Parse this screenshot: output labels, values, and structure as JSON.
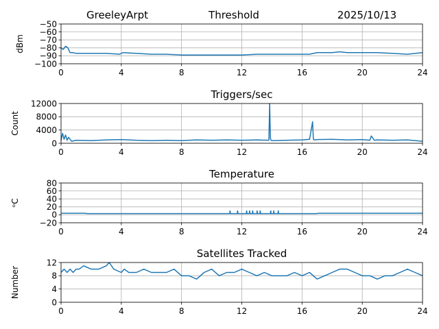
{
  "header": {
    "station": "GreeleyArpt",
    "plot_name": "Threshold",
    "date": "2025/10/13"
  },
  "colors": {
    "line": "#1f77b4",
    "grid": "#b0b0b0",
    "axis": "#000000"
  },
  "chart_data": [
    {
      "type": "line",
      "title": "",
      "ylabel": "dBm",
      "xlim": [
        0,
        24
      ],
      "ylim": [
        -100,
        -50
      ],
      "xticks": [
        0,
        4,
        8,
        12,
        16,
        20,
        24
      ],
      "yticks": [
        -100,
        -90,
        -80,
        -70,
        -60,
        -50
      ],
      "grid": true,
      "series": [
        {
          "x": [
            0,
            0.15,
            0.3,
            0.45,
            0.6,
            0.8,
            1.0,
            1.5,
            2.0,
            3.0,
            3.9,
            4.1,
            5.0,
            6.0,
            7.0,
            8.0,
            9.0,
            10.0,
            11.0,
            12.0,
            13.0,
            14.0,
            15.0,
            16.0,
            16.5,
            17.0,
            18.0,
            18.5,
            19.0,
            20.0,
            21.0,
            22.0,
            23.0,
            24.0
          ],
          "y": [
            -80,
            -82,
            -78,
            -80,
            -86,
            -86,
            -87,
            -87,
            -87,
            -87,
            -88,
            -86,
            -87,
            -88,
            -88,
            -89,
            -89,
            -89,
            -89,
            -89,
            -88,
            -88,
            -88,
            -88,
            -88,
            -86,
            -86,
            -85,
            -86,
            -86,
            -86,
            -87,
            -88,
            -86
          ]
        }
      ]
    },
    {
      "type": "line",
      "title": "Triggers/sec",
      "ylabel": "Count",
      "xlim": [
        0,
        24
      ],
      "ylim": [
        0,
        12000
      ],
      "xticks": [
        0,
        4,
        8,
        12,
        16,
        20,
        24
      ],
      "yticks": [
        0,
        4000,
        8000,
        12000
      ],
      "grid": true,
      "series": [
        {
          "x": [
            0,
            0.1,
            0.2,
            0.3,
            0.4,
            0.5,
            0.7,
            1.0,
            2.0,
            3.0,
            4.0,
            5.0,
            6.0,
            7.0,
            8.0,
            9.0,
            10.0,
            11.0,
            12.0,
            13.0,
            13.8,
            13.85,
            13.9,
            13.95,
            14.0,
            15.0,
            16.0,
            16.5,
            16.7,
            16.75,
            16.8,
            17.0,
            18.0,
            19.0,
            20.0,
            20.5,
            20.6,
            20.8,
            21.0,
            22.0,
            23.0,
            24.0
          ],
          "y": [
            800,
            3000,
            1200,
            2500,
            900,
            1800,
            600,
            900,
            800,
            1000,
            1100,
            900,
            800,
            900,
            800,
            1000,
            900,
            1000,
            900,
            1000,
            900,
            12000,
            1500,
            900,
            800,
            900,
            1000,
            1200,
            6500,
            1300,
            1000,
            1100,
            1200,
            1000,
            1100,
            900,
            2200,
            900,
            1000,
            900,
            1000,
            600
          ]
        }
      ]
    },
    {
      "type": "line",
      "title": "Temperature",
      "ylabel": "ᵒC",
      "xlim": [
        0,
        24
      ],
      "ylim": [
        -20,
        80
      ],
      "xticks": [
        0,
        4,
        8,
        12,
        16,
        20,
        24
      ],
      "yticks": [
        -20,
        0,
        20,
        40,
        60,
        80
      ],
      "grid": true,
      "series": [
        {
          "x": [
            0,
            1.6,
            1.7,
            11.2,
            11.22,
            11.25,
            11.7,
            11.72,
            11.75,
            12.3,
            12.32,
            12.35,
            12.5,
            12.52,
            12.55,
            12.7,
            12.72,
            12.75,
            13.0,
            13.02,
            13.05,
            13.2,
            13.22,
            13.25,
            13.9,
            13.92,
            13.95,
            14.1,
            14.12,
            14.15,
            14.4,
            14.42,
            14.45,
            17.0,
            17.1,
            24.0
          ],
          "y": [
            4,
            4,
            3,
            3,
            10,
            3,
            3,
            10,
            3,
            3,
            10,
            3,
            3,
            10,
            3,
            3,
            10,
            3,
            3,
            10,
            3,
            3,
            10,
            3,
            3,
            10,
            3,
            3,
            10,
            3,
            3,
            10,
            3,
            3,
            4,
            4
          ]
        }
      ]
    },
    {
      "type": "line",
      "title": "Satellites Tracked",
      "ylabel": "Number",
      "xlim": [
        0,
        24
      ],
      "ylim": [
        0,
        12
      ],
      "xticks": [
        0,
        4,
        8,
        12,
        16,
        20,
        24
      ],
      "yticks": [
        0,
        4,
        8,
        12
      ],
      "grid": true,
      "series": [
        {
          "x": [
            0,
            0.2,
            0.4,
            0.6,
            0.8,
            1.0,
            1.2,
            1.5,
            2.0,
            2.5,
            3.0,
            3.2,
            3.5,
            4.0,
            4.2,
            4.5,
            5.0,
            5.5,
            6.0,
            6.5,
            7.0,
            7.5,
            8.0,
            8.5,
            9.0,
            9.5,
            10.0,
            10.5,
            11.0,
            11.5,
            12.0,
            12.5,
            13.0,
            13.5,
            14.0,
            14.5,
            15.0,
            15.5,
            16.0,
            16.5,
            17.0,
            17.5,
            18.0,
            18.5,
            19.0,
            19.5,
            20.0,
            20.5,
            21.0,
            21.5,
            22.0,
            22.5,
            23.0,
            23.5,
            24.0
          ],
          "y": [
            9,
            10,
            9,
            10,
            9,
            10,
            10,
            11,
            10,
            10,
            11,
            12,
            10,
            9,
            10,
            9,
            9,
            10,
            9,
            9,
            9,
            10,
            8,
            8,
            7,
            9,
            10,
            8,
            9,
            9,
            10,
            9,
            8,
            9,
            8,
            8,
            8,
            9,
            8,
            9,
            7,
            8,
            9,
            10,
            10,
            9,
            8,
            8,
            7,
            8,
            8,
            9,
            10,
            9,
            8
          ]
        }
      ]
    }
  ]
}
